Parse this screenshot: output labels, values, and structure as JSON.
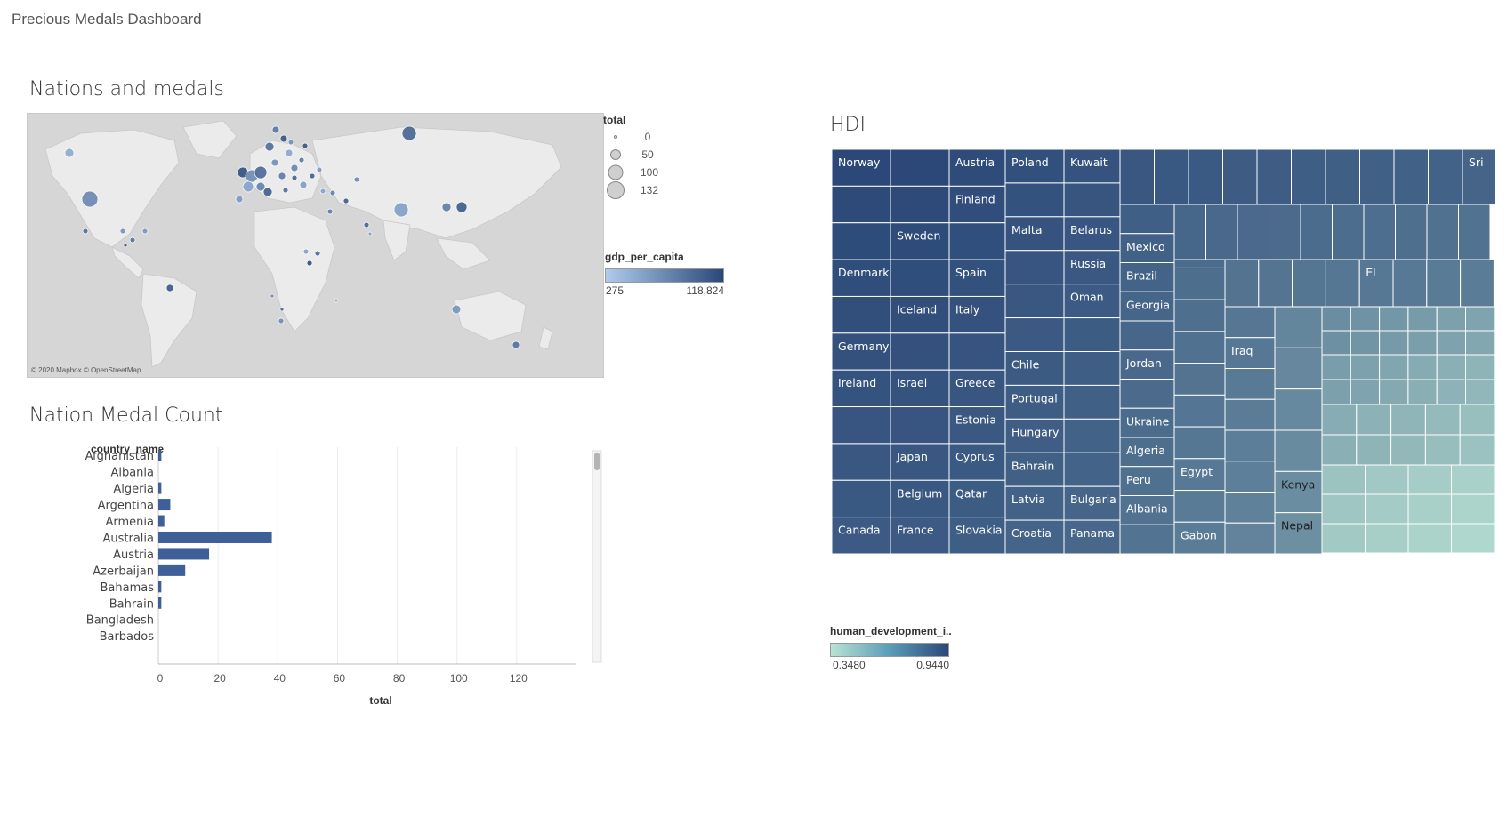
{
  "dashboard": {
    "title": "Precious Medals Dashboard"
  },
  "map_panel": {
    "title": "Nations and medals",
    "credit": "© 2020 Mapbox © OpenStreetMap",
    "size_legend": {
      "title": "total",
      "items": [
        {
          "label": "0",
          "value": 0
        },
        {
          "label": "50",
          "value": 50
        },
        {
          "label": "100",
          "value": 100
        },
        {
          "label": "132",
          "value": 132
        }
      ]
    },
    "color_legend": {
      "title": "gdp_per_capita",
      "min": "275",
      "max": "118,824",
      "color_low": "#aecbee",
      "color_high": "#2b4878"
    }
  },
  "bar_panel": {
    "title": "Nation Medal Count"
  },
  "hdi_panel": {
    "title": "HDI",
    "color_legend": {
      "title": "human_development_i..",
      "min": "0.3480",
      "max": "0.9440",
      "color_low": "#b9e2d3",
      "color_high": "#2b4878"
    }
  },
  "chart_data": [
    {
      "type": "bar",
      "title": "Nation Medal Count",
      "orientation": "horizontal",
      "ylabel": "country_name",
      "xlabel": "total",
      "xlim": [
        0,
        140
      ],
      "xticks": [
        "0",
        "20",
        "40",
        "60",
        "80",
        "100",
        "120"
      ],
      "categories": [
        "Afghanistan",
        "Albania",
        "Algeria",
        "Argentina",
        "Armenia",
        "Australia",
        "Austria",
        "Azerbaijan",
        "Bahamas",
        "Bahrain",
        "Bangladesh",
        "Barbados"
      ],
      "values": [
        1,
        0,
        1,
        4,
        2,
        38,
        17,
        9,
        1,
        1,
        0,
        0
      ],
      "color": "#3f5f98",
      "grid": true
    },
    {
      "type": "scatter",
      "subtype": "map",
      "title": "Nations and medals",
      "size_field": "total",
      "color_field": "gdp_per_capita"
    },
    {
      "type": "treemap",
      "title": "HDI",
      "color_field": "human_development_i..",
      "labels": [
        "Norway",
        "Austria",
        "Poland",
        "Kuwait",
        "Sri",
        "Finland",
        "Mexico",
        "Sweden",
        "Malta",
        "Belarus",
        "Brazil",
        "Georgia",
        "Denmark",
        "Spain",
        "Russia",
        "El",
        "Iceland",
        "Italy",
        "Oman",
        "Jordan",
        "Iraq",
        "Germany",
        "Chile",
        "Ireland",
        "Israel",
        "Greece",
        "Portugal",
        "Ukraine",
        "Estonia",
        "Hungary",
        "Algeria",
        "Japan",
        "Cyprus",
        "Bahrain",
        "Peru",
        "Egypt",
        "Kenya",
        "Belgium",
        "Qatar",
        "Latvia",
        "Bulgaria",
        "Albania",
        "Nepal",
        "Canada",
        "France",
        "Slovakia",
        "Croatia",
        "Panama",
        "Gabon"
      ]
    }
  ]
}
